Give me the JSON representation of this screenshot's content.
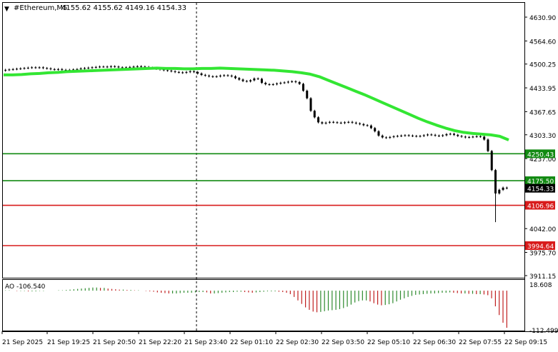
{
  "header": {
    "symbol": "#Ethereum,M5",
    "ohlc": "4155.62 4155.62 4149.16 4154.33"
  },
  "colors": {
    "candle": "#000000",
    "ma": "#33e633",
    "support_green": "#128a12",
    "resistance_red": "#d81b1b",
    "ao_up": "#2e8b2e",
    "ao_down": "#c02020",
    "price_label_bg": "#000000",
    "price_label_text": "#ffffff",
    "grid_sep": "#000000"
  },
  "chart_data": [
    {
      "type": "candlestick",
      "title": "#Ethereum,M5",
      "ylim": [
        3911.15,
        4630.9
      ],
      "y_ticks": [
        "4630.90",
        "4564.60",
        "4500.25",
        "4433.95",
        "4367.65",
        "4303.30",
        "4237.00",
        "4042.00",
        "3975.70",
        "3911.15"
      ],
      "x_ticks": [
        "21 Sep 2025",
        "21 Sep 19:25",
        "21 Sep 20:50",
        "21 Sep 22:20",
        "21 Sep 23:40",
        "22 Sep 01:10",
        "22 Sep 02:30",
        "22 Sep 03:50",
        "22 Sep 05:10",
        "22 Sep 06:30",
        "22 Sep 07:55",
        "22 Sep 09:15"
      ],
      "levels": [
        {
          "label": "4250.43",
          "value": 4250.43,
          "color": "green"
        },
        {
          "label": "4175.50",
          "value": 4175.5,
          "color": "green"
        },
        {
          "label": "4106.96",
          "value": 4106.96,
          "color": "red"
        },
        {
          "label": "3994.64",
          "value": 3994.64,
          "color": "red"
        }
      ],
      "current_price": "4154.33",
      "close_series": [
        4484,
        4485,
        4486,
        4487,
        4488,
        4489,
        4490,
        4491,
        4490,
        4491,
        4489,
        4488,
        4486,
        4485,
        4486,
        4484,
        4483,
        4484,
        4485,
        4486,
        4488,
        4489,
        4490,
        4491,
        4492,
        4493,
        4493,
        4492,
        4494,
        4493,
        4491,
        4490,
        4491,
        4492,
        4493,
        4494,
        4493,
        4492,
        4490,
        4489,
        4487,
        4485,
        4483,
        4482,
        4480,
        4478,
        4477,
        4476,
        4478,
        4480,
        4478,
        4474,
        4470,
        4468,
        4466,
        4465,
        4466,
        4468,
        4469,
        4468,
        4466,
        4461,
        4457,
        4453,
        4452,
        4455,
        4460,
        4459,
        4448,
        4444,
        4443,
        4444,
        4446,
        4448,
        4449,
        4451,
        4452,
        4450,
        4445,
        4426,
        4405,
        4370,
        4352,
        4338,
        4335,
        4337,
        4339,
        4338,
        4337,
        4336,
        4338,
        4339,
        4337,
        4335,
        4333,
        4330,
        4329,
        4322,
        4313,
        4301,
        4296,
        4295,
        4297,
        4299,
        4300,
        4301,
        4302,
        4301,
        4300,
        4299,
        4300,
        4302,
        4304,
        4303,
        4301,
        4300,
        4302,
        4305,
        4306,
        4303,
        4300,
        4298,
        4296,
        4297,
        4298,
        4299,
        4298,
        4290,
        4258,
        4205,
        4140,
        4150,
        4156,
        4154.33
      ],
      "ma_series": [
        4470,
        4470,
        4471,
        4473,
        4474,
        4476,
        4477,
        4479,
        4480,
        4481,
        4482,
        4483,
        4484,
        4485,
        4486,
        4487,
        4488,
        4489,
        4488,
        4488,
        4487,
        4487,
        4488,
        4488,
        4489,
        4488,
        4487,
        4486,
        4485,
        4484,
        4483,
        4481,
        4479,
        4476,
        4472,
        4465,
        4455,
        4445,
        4435,
        4425,
        4415,
        4404,
        4393,
        4382,
        4371,
        4360,
        4349,
        4339,
        4330,
        4322,
        4315,
        4310,
        4307,
        4305,
        4303,
        4299,
        4289
      ],
      "ao": {
        "label": "AO -106.540",
        "ylim": [
          -112.499,
          18.608
        ],
        "y_ticks": [
          "18.608",
          "-112.499"
        ],
        "values": [
          1,
          1,
          0,
          -1,
          -1,
          -1,
          -2,
          -2,
          -2,
          -1,
          -1,
          0,
          0,
          0,
          1,
          1,
          2,
          3,
          4,
          5,
          6,
          7,
          8,
          9,
          9,
          8,
          8,
          6,
          5,
          4,
          3,
          3,
          2,
          2,
          1,
          1,
          0,
          -1,
          -2,
          -3,
          -5,
          -6,
          -7,
          -8,
          -8,
          -8,
          -7,
          -6,
          -6,
          -6,
          -5,
          -4,
          -4,
          -5,
          -8,
          -8,
          -7,
          -6,
          -5,
          -4,
          -4,
          -3,
          -3,
          -4,
          -5,
          -6,
          -5,
          -4,
          -3,
          -2,
          -2,
          -2,
          -3,
          -4,
          -6,
          -10,
          -18,
          -28,
          -38,
          -48,
          -55,
          -60,
          -62,
          -61,
          -59,
          -57,
          -56,
          -55,
          -53,
          -50,
          -46,
          -40,
          -34,
          -30,
          -28,
          -28,
          -31,
          -36,
          -40,
          -42,
          -41,
          -39,
          -36,
          -31,
          -26,
          -22,
          -18,
          -15,
          -12,
          -11,
          -10,
          -9,
          -8,
          -8,
          -7,
          -6,
          -6,
          -5,
          -6,
          -7,
          -8,
          -8,
          -9,
          -9,
          -10,
          -10,
          -11,
          -13,
          -22,
          -45,
          -70,
          -92,
          -106.54
        ]
      }
    }
  ]
}
